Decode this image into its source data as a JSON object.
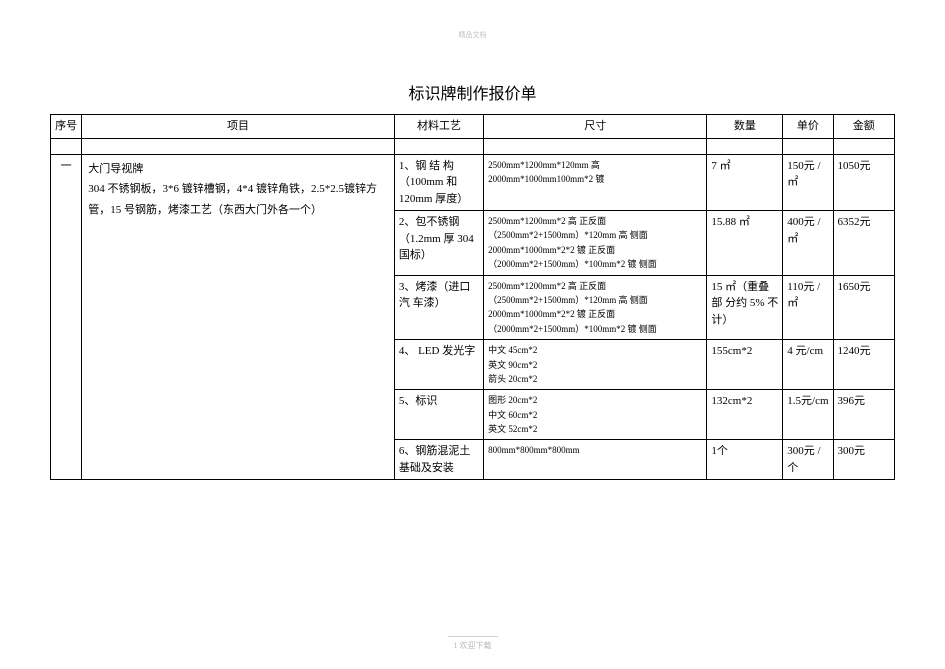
{
  "header_small": "精品文档",
  "title": "标识牌制作报价单",
  "columns": {
    "seq": "序号",
    "item": "项目",
    "material": "材料工艺",
    "size": "尺寸",
    "qty": "数量",
    "price": "单价",
    "amount": "金额"
  },
  "section": {
    "seq": "一",
    "item_title": "大门导视牌",
    "item_desc": "304 不锈钢板，3*6 镀锌槽钢，4*4 镀锌角铁，2.5*2.5镀锌方管，15 号钢筋，烤漆工艺（东西大门外各一个）"
  },
  "rows": [
    {
      "material": "1、钢 结 构（100mm 和 120mm 厚度）",
      "size_lines": [
        "2500mm*1200mm*120mm 高",
        "2000mm*1000mm100mm*2 镀"
      ],
      "qty": "7 ㎡",
      "price": "150元 /㎡",
      "amount": "1050元"
    },
    {
      "material": "2、包不锈钢（1.2mm 厚 304 国标）",
      "size_lines": [
        "2500mm*1200mm*2 高  正反面",
        "（2500mm*2+1500mm）*120mm 高  侧面",
        "2000mm*1000mm*2*2 镀  正反面",
        "（2000mm*2+1500mm）*100mm*2 镀  侧面"
      ],
      "qty": "15.88 ㎡",
      "price": "400元 /㎡",
      "amount": "6352元"
    },
    {
      "material": "3、烤漆（进口 汽 车漆）",
      "size_lines": [
        "2500mm*1200mm*2 高  正反面",
        "（2500mm*2+1500mm）*120mm 高  侧面",
        "2000mm*1000mm*2*2 镀  正反面",
        "（2000mm*2+1500mm）*100mm*2 镀  侧面"
      ],
      "qty": "15 ㎡（重叠 部 分约 5% 不计）",
      "price": "110元 /㎡",
      "amount": "1650元"
    },
    {
      "material": "4、 LED 发光字",
      "size_lines": [
        "中文 45cm*2",
        "英文 90cm*2",
        "箭头 20cm*2"
      ],
      "qty": "155cm*2",
      "price": "4 元/cm",
      "amount": "1240元"
    },
    {
      "material": "5、标识",
      "size_lines": [
        "图形 20cm*2",
        "中文 60cm*2",
        "英文 52cm*2"
      ],
      "qty": "132cm*2",
      "price": "1.5元/cm",
      "amount": "396元"
    },
    {
      "material": "6、钢筋混泥土基础及安装",
      "size_lines": [
        "800mm*800mm*800mm"
      ],
      "qty": "1个",
      "price": "300元 /个",
      "amount": "300元"
    }
  ],
  "footer_page": "1",
  "footer_text": "欢迎下载"
}
